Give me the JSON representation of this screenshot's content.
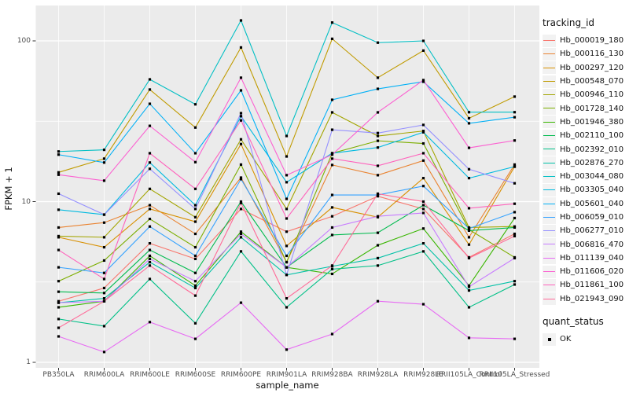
{
  "chart_data": {
    "type": "line",
    "title": "",
    "xlabel": "sample_name",
    "ylabel": "FPKM + 1",
    "y_scale": "log10",
    "y_ticks": [
      1,
      10,
      100
    ],
    "y_minor_ticks": [
      3.1623,
      31.623
    ],
    "ylim": [
      0.93,
      155
    ],
    "grid": true,
    "legend_position": "right",
    "legend_title": "tracking_id",
    "quant_legend": {
      "title": "quant_status",
      "items": [
        "OK"
      ]
    },
    "style_colors": {
      "panel_background": "#EBEBEB",
      "gridline": "#FFFFFF",
      "tick_text": "#4D4D4D",
      "marker": "#000000",
      "legend_key_background": "#F2F2F2"
    },
    "marker": {
      "shape": "filled-square",
      "size": 3.2,
      "color": "#000000"
    },
    "categories": [
      "PB350LA",
      "RRIM600LA",
      "RRIM600LE",
      "RRIM600SE",
      "RRIM600PE",
      "RRIM901LA",
      "RRIM928BA",
      "RRIM928LA",
      "RRIM928LE",
      "RRII105LA_Control",
      "RRII105LA_Stressed"
    ],
    "series": [
      {
        "name": "Hb_000019_180",
        "color": "#F8766D",
        "values": [
          2.4,
          2.9,
          5.5,
          4.4,
          9.0,
          6.5,
          8.1,
          10.8,
          9.0,
          4.5,
          6.3
        ]
      },
      {
        "name": "Hb_000116_130",
        "color": "#EA8331",
        "values": [
          6.9,
          7.4,
          9.5,
          6.3,
          14.1,
          4.2,
          16.9,
          14.6,
          18,
          6.0,
          17
        ]
      },
      {
        "name": "Hb_000297_120",
        "color": "#D89000",
        "values": [
          6.0,
          5.2,
          9.0,
          7.5,
          22.8,
          5.3,
          9.2,
          8.0,
          14,
          5.4,
          16.5
        ]
      },
      {
        "name": "Hb_000548_070",
        "color": "#C09B00",
        "values": [
          15.2,
          18.5,
          49.8,
          28.9,
          91,
          19.1,
          103,
          59,
          87,
          33,
          45
        ]
      },
      {
        "name": "Hb_000946_110",
        "color": "#A3A500",
        "values": [
          6.1,
          6.0,
          12,
          8.0,
          24.4,
          9.0,
          35.9,
          25.6,
          27.5,
          6.9,
          7.0
        ]
      },
      {
        "name": "Hb_001728_140",
        "color": "#7CAE00",
        "values": [
          3.2,
          4.3,
          7.8,
          5.2,
          17,
          4.2,
          20,
          23.9,
          23,
          6.7,
          4.5
        ]
      },
      {
        "name": "Hb_001946_380",
        "color": "#39B600",
        "values": [
          2.2,
          2.4,
          4.6,
          3.0,
          6.5,
          3.9,
          3.55,
          5.35,
          6.8,
          3.0,
          7.9
        ]
      },
      {
        "name": "Hb_002110_100",
        "color": "#00BB4E",
        "values": [
          2.75,
          2.7,
          5.0,
          3.6,
          10,
          3.9,
          6.2,
          6.4,
          9.5,
          6.6,
          6.9
        ]
      },
      {
        "name": "Hb_002392_010",
        "color": "#00C087",
        "values": [
          1.86,
          1.68,
          3.3,
          1.75,
          4.9,
          2.2,
          3.8,
          4.0,
          4.9,
          2.2,
          3.05
        ]
      },
      {
        "name": "Hb_002876_270",
        "color": "#00C1A7",
        "values": [
          2.35,
          2.5,
          4.2,
          2.9,
          6.0,
          3.5,
          3.96,
          4.45,
          5.5,
          2.8,
          3.2
        ]
      },
      {
        "name": "Hb_003044_080",
        "color": "#00BFC4",
        "values": [
          20.5,
          21,
          57.6,
          40.3,
          134,
          25.6,
          130,
          97.5,
          100,
          36,
          36
        ]
      },
      {
        "name": "Hb_003305_040",
        "color": "#00BAE0",
        "values": [
          8.9,
          8.3,
          17.5,
          9.5,
          34,
          13.2,
          20,
          21.7,
          27,
          14,
          16.5
        ]
      },
      {
        "name": "Hb_005601_040",
        "color": "#00B0F6",
        "values": [
          19.6,
          17.5,
          40.6,
          20,
          49.2,
          10.4,
          43,
          50.3,
          55.7,
          30.7,
          33.5
        ]
      },
      {
        "name": "Hb_006059_010",
        "color": "#35A2FF",
        "values": [
          3.9,
          3.6,
          7.0,
          4.6,
          13.8,
          4.6,
          11.0,
          11.0,
          12.5,
          6.8,
          8.6
        ]
      },
      {
        "name": "Hb_006277_010",
        "color": "#9590FF",
        "values": [
          11.2,
          8.3,
          16,
          9.0,
          35.5,
          3.5,
          28,
          26.7,
          30,
          15.9,
          13
        ]
      },
      {
        "name": "Hb_006816_470",
        "color": "#C77CFF",
        "values": [
          2.35,
          2.4,
          4.4,
          3.2,
          6.3,
          3.9,
          6.9,
          8.1,
          8.5,
          2.95,
          4.45
        ]
      },
      {
        "name": "Hb_011139_040",
        "color": "#E76BF3",
        "values": [
          1.45,
          1.16,
          1.78,
          1.4,
          2.35,
          1.2,
          1.5,
          2.4,
          2.3,
          1.42,
          1.4
        ]
      },
      {
        "name": "Hb_011606_020",
        "color": "#FC61D1",
        "values": [
          14.7,
          13.5,
          29.6,
          17.6,
          59,
          14.6,
          19.6,
          35.9,
          57,
          21.6,
          24
        ]
      },
      {
        "name": "Hb_011861_100",
        "color": "#FF62BC",
        "values": [
          5.0,
          3.3,
          20,
          12,
          32,
          7.85,
          18.5,
          16.7,
          20,
          9.1,
          9.7
        ]
      },
      {
        "name": "Hb_021943_090",
        "color": "#FF6A98",
        "values": [
          1.64,
          2.4,
          4.0,
          2.6,
          9.8,
          2.5,
          4.0,
          11.2,
          10,
          4.45,
          6.1
        ]
      }
    ]
  }
}
